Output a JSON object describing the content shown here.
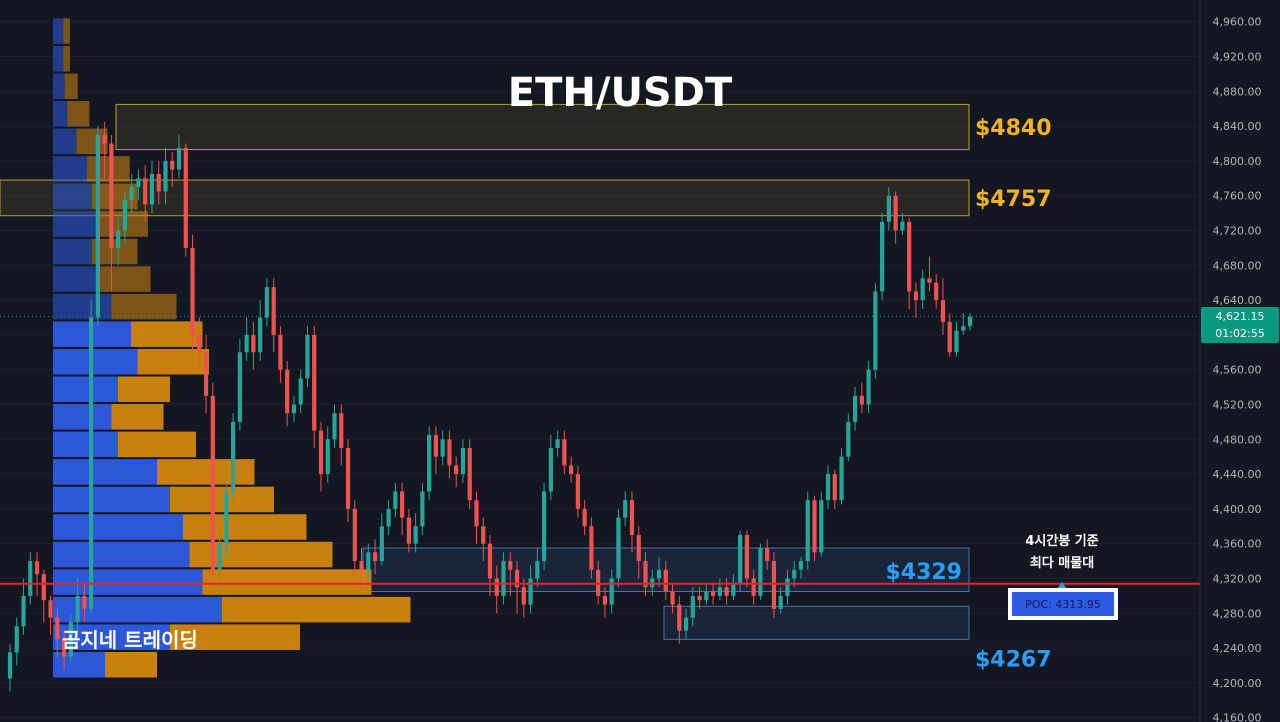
{
  "title": "ETH/USDT",
  "watermark": "곰지네 트레이딩",
  "annotation": {
    "line1": "4시간봉 기준",
    "line2": "최다 매물대"
  },
  "poc_label": "POC: 4313.95",
  "last_price": {
    "price": "4,621.15",
    "countdown": "01:02:55"
  },
  "zones": [
    {
      "label": "$4840",
      "from": 4813,
      "to": 4865,
      "kind": "resistance"
    },
    {
      "label": "$4757",
      "from": 4737,
      "to": 4778,
      "kind": "resistance"
    },
    {
      "label": "$4329",
      "from": 4305,
      "to": 4355,
      "kind": "support"
    },
    {
      "label": "$4267",
      "from": 4250,
      "to": 4288,
      "kind": "support"
    }
  ],
  "colors": {
    "background": "#131722",
    "up": "#26a69a",
    "down": "#ef5350",
    "resistance_label": "#f5b21a",
    "support_label": "#2a9df4",
    "poc_line": "#e8232a",
    "vp_buy": "#2d5be3",
    "vp_sell": "#d4860f"
  },
  "chart_data": {
    "type": "candlestick",
    "symbol": "ETH/USDT",
    "timeframe": "4h",
    "y_axis": {
      "ticks": [
        "4,160.00",
        "4,200.00",
        "4,240.00",
        "4,280.00",
        "4,320.00",
        "4,360.00",
        "4,400.00",
        "4,440.00",
        "4,480.00",
        "4,520.00",
        "4,560.00",
        "4,600.00",
        "4,640.00",
        "4,680.00",
        "4,720.00",
        "4,760.00",
        "4,800.00",
        "4,840.00",
        "4,880.00",
        "4,920.00",
        "4,960.00"
      ],
      "min": 4155,
      "max": 4985
    },
    "poc": 4313.95,
    "last": 4621.15,
    "candles": [
      [
        4205,
        4235,
        4190,
        4245
      ],
      [
        4235,
        4265,
        4220,
        4275
      ],
      [
        4265,
        4300,
        4255,
        4320
      ],
      [
        4300,
        4340,
        4290,
        4350
      ],
      [
        4340,
        4325,
        4300,
        4350
      ],
      [
        4325,
        4295,
        4270,
        4330
      ],
      [
        4295,
        4275,
        4255,
        4300
      ],
      [
        4275,
        4250,
        4230,
        4285
      ],
      [
        4250,
        4230,
        4215,
        4260
      ],
      [
        4230,
        4270,
        4225,
        4280
      ],
      [
        4270,
        4300,
        4260,
        4320
      ],
      [
        4300,
        4285,
        4270,
        4315
      ],
      [
        4285,
        4620,
        4280,
        4640
      ],
      [
        4620,
        4830,
        4610,
        4840
      ],
      [
        4830,
        4820,
        4780,
        4845
      ],
      [
        4820,
        4700,
        4650,
        4830
      ],
      [
        4700,
        4720,
        4680,
        4735
      ],
      [
        4720,
        4755,
        4705,
        4765
      ],
      [
        4755,
        4770,
        4740,
        4785
      ],
      [
        4770,
        4780,
        4755,
        4790
      ],
      [
        4780,
        4750,
        4730,
        4795
      ],
      [
        4750,
        4785,
        4740,
        4800
      ],
      [
        4785,
        4765,
        4750,
        4800
      ],
      [
        4765,
        4800,
        4750,
        4815
      ],
      [
        4800,
        4790,
        4770,
        4810
      ],
      [
        4790,
        4815,
        4780,
        4830
      ],
      [
        4815,
        4700,
        4690,
        4820
      ],
      [
        4700,
        4600,
        4580,
        4715
      ],
      [
        4600,
        4580,
        4560,
        4620
      ],
      [
        4580,
        4530,
        4510,
        4600
      ],
      [
        4530,
        4330,
        4320,
        4545
      ],
      [
        4330,
        4360,
        4310,
        4375
      ],
      [
        4360,
        4420,
        4345,
        4430
      ],
      [
        4420,
        4500,
        4410,
        4510
      ],
      [
        4500,
        4580,
        4490,
        4595
      ],
      [
        4580,
        4600,
        4570,
        4620
      ],
      [
        4600,
        4580,
        4560,
        4615
      ],
      [
        4580,
        4620,
        4570,
        4640
      ],
      [
        4620,
        4655,
        4610,
        4665
      ],
      [
        4655,
        4600,
        4580,
        4665
      ],
      [
        4600,
        4560,
        4545,
        4610
      ],
      [
        4560,
        4510,
        4495,
        4570
      ],
      [
        4510,
        4520,
        4500,
        4530
      ],
      [
        4520,
        4550,
        4510,
        4560
      ],
      [
        4550,
        4600,
        4540,
        4610
      ],
      [
        4600,
        4490,
        4470,
        4610
      ],
      [
        4490,
        4440,
        4420,
        4500
      ],
      [
        4440,
        4480,
        4430,
        4495
      ],
      [
        4480,
        4510,
        4470,
        4520
      ],
      [
        4510,
        4470,
        4450,
        4520
      ],
      [
        4470,
        4400,
        4385,
        4480
      ],
      [
        4400,
        4340,
        4320,
        4410
      ],
      [
        4340,
        4330,
        4310,
        4355
      ],
      [
        4330,
        4350,
        4320,
        4360
      ],
      [
        4350,
        4340,
        4325,
        4365
      ],
      [
        4340,
        4380,
        4335,
        4395
      ],
      [
        4380,
        4400,
        4370,
        4410
      ],
      [
        4400,
        4420,
        4390,
        4430
      ],
      [
        4420,
        4390,
        4370,
        4430
      ],
      [
        4390,
        4360,
        4350,
        4400
      ],
      [
        4360,
        4380,
        4350,
        4395
      ],
      [
        4380,
        4420,
        4370,
        4430
      ],
      [
        4420,
        4485,
        4410,
        4495
      ],
      [
        4485,
        4460,
        4440,
        4495
      ],
      [
        4460,
        4480,
        4450,
        4490
      ],
      [
        4480,
        4450,
        4435,
        4490
      ],
      [
        4450,
        4440,
        4425,
        4460
      ],
      [
        4440,
        4470,
        4430,
        4480
      ],
      [
        4470,
        4410,
        4400,
        4480
      ],
      [
        4410,
        4380,
        4360,
        4420
      ],
      [
        4380,
        4360,
        4340,
        4390
      ],
      [
        4360,
        4320,
        4300,
        4370
      ],
      [
        4320,
        4300,
        4280,
        4335
      ],
      [
        4300,
        4340,
        4290,
        4350
      ],
      [
        4340,
        4330,
        4300,
        4350
      ],
      [
        4330,
        4310,
        4280,
        4340
      ],
      [
        4310,
        4290,
        4275,
        4320
      ],
      [
        4290,
        4320,
        4280,
        4335
      ],
      [
        4320,
        4340,
        4310,
        4355
      ],
      [
        4340,
        4420,
        4330,
        4430
      ],
      [
        4420,
        4470,
        4410,
        4485
      ],
      [
        4470,
        4480,
        4460,
        4490
      ],
      [
        4480,
        4450,
        4440,
        4490
      ],
      [
        4450,
        4440,
        4430,
        4460
      ],
      [
        4440,
        4400,
        4390,
        4450
      ],
      [
        4400,
        4380,
        4370,
        4410
      ],
      [
        4380,
        4330,
        4320,
        4390
      ],
      [
        4330,
        4300,
        4290,
        4340
      ],
      [
        4300,
        4290,
        4275,
        4310
      ],
      [
        4290,
        4320,
        4280,
        4330
      ],
      [
        4320,
        4390,
        4310,
        4400
      ],
      [
        4390,
        4410,
        4380,
        4420
      ],
      [
        4410,
        4370,
        4350,
        4420
      ],
      [
        4370,
        4340,
        4320,
        4380
      ],
      [
        4340,
        4310,
        4300,
        4350
      ],
      [
        4310,
        4320,
        4300,
        4330
      ],
      [
        4320,
        4330,
        4310,
        4345
      ],
      [
        4330,
        4305,
        4295,
        4340
      ],
      [
        4305,
        4290,
        4280,
        4315
      ],
      [
        4290,
        4260,
        4245,
        4300
      ],
      [
        4260,
        4275,
        4250,
        4285
      ],
      [
        4275,
        4300,
        4265,
        4310
      ],
      [
        4300,
        4295,
        4285,
        4310
      ],
      [
        4295,
        4305,
        4290,
        4315
      ],
      [
        4305,
        4300,
        4290,
        4315
      ],
      [
        4300,
        4310,
        4295,
        4320
      ],
      [
        4310,
        4300,
        4290,
        4320
      ],
      [
        4300,
        4315,
        4295,
        4325
      ],
      [
        4315,
        4370,
        4305,
        4375
      ],
      [
        4370,
        4320,
        4310,
        4375
      ],
      [
        4320,
        4300,
        4290,
        4330
      ],
      [
        4300,
        4355,
        4295,
        4360
      ],
      [
        4355,
        4340,
        4330,
        4365
      ],
      [
        4340,
        4285,
        4275,
        4350
      ],
      [
        4285,
        4300,
        4280,
        4310
      ],
      [
        4300,
        4320,
        4290,
        4330
      ],
      [
        4320,
        4330,
        4310,
        4340
      ],
      [
        4330,
        4340,
        4320,
        4345
      ],
      [
        4340,
        4410,
        4330,
        4420
      ],
      [
        4410,
        4350,
        4340,
        4415
      ],
      [
        4350,
        4410,
        4345,
        4420
      ],
      [
        4410,
        4440,
        4400,
        4450
      ],
      [
        4440,
        4410,
        4400,
        4445
      ],
      [
        4410,
        4460,
        4405,
        4470
      ],
      [
        4460,
        4500,
        4455,
        4510
      ],
      [
        4500,
        4530,
        4490,
        4540
      ],
      [
        4530,
        4520,
        4510,
        4545
      ],
      [
        4520,
        4560,
        4510,
        4570
      ],
      [
        4560,
        4650,
        4550,
        4660
      ],
      [
        4650,
        4730,
        4640,
        4740
      ],
      [
        4730,
        4760,
        4720,
        4770
      ],
      [
        4760,
        4720,
        4705,
        4765
      ],
      [
        4720,
        4730,
        4715,
        4740
      ],
      [
        4730,
        4650,
        4630,
        4735
      ],
      [
        4650,
        4640,
        4620,
        4660
      ],
      [
        4640,
        4665,
        4630,
        4675
      ],
      [
        4665,
        4660,
        4650,
        4690
      ],
      [
        4660,
        4640,
        4630,
        4670
      ],
      [
        4640,
        4615,
        4600,
        4665
      ],
      [
        4615,
        4580,
        4575,
        4625
      ],
      [
        4580,
        4605,
        4575,
        4615
      ],
      [
        4605,
        4610,
        4600,
        4625
      ],
      [
        4610,
        4621,
        4605,
        4625
      ]
    ],
    "volume_profile": [
      {
        "buy": 0.08,
        "sell": 0.05
      },
      {
        "buy": 0.08,
        "sell": 0.05
      },
      {
        "buy": 0.09,
        "sell": 0.1
      },
      {
        "buy": 0.11,
        "sell": 0.17
      },
      {
        "buy": 0.18,
        "sell": 0.24
      },
      {
        "buy": 0.26,
        "sell": 0.33
      },
      {
        "buy": 0.3,
        "sell": 0.35
      },
      {
        "buy": 0.33,
        "sell": 0.4
      },
      {
        "buy": 0.3,
        "sell": 0.35
      },
      {
        "buy": 0.35,
        "sell": 0.4
      },
      {
        "buy": 0.45,
        "sell": 0.5
      },
      {
        "buy": 0.6,
        "sell": 0.55
      },
      {
        "buy": 0.65,
        "sell": 0.55
      },
      {
        "buy": 0.5,
        "sell": 0.4
      },
      {
        "buy": 0.45,
        "sell": 0.4
      },
      {
        "buy": 0.5,
        "sell": 0.6
      },
      {
        "buy": 0.8,
        "sell": 0.75
      },
      {
        "buy": 0.9,
        "sell": 0.8
      },
      {
        "buy": 1.0,
        "sell": 0.95
      },
      {
        "buy": 1.05,
        "sell": 1.1
      },
      {
        "buy": 1.15,
        "sell": 1.3
      },
      {
        "buy": 1.3,
        "sell": 1.45
      },
      {
        "buy": 0.9,
        "sell": 1.0
      },
      {
        "buy": 0.4,
        "sell": 0.4
      }
    ]
  }
}
